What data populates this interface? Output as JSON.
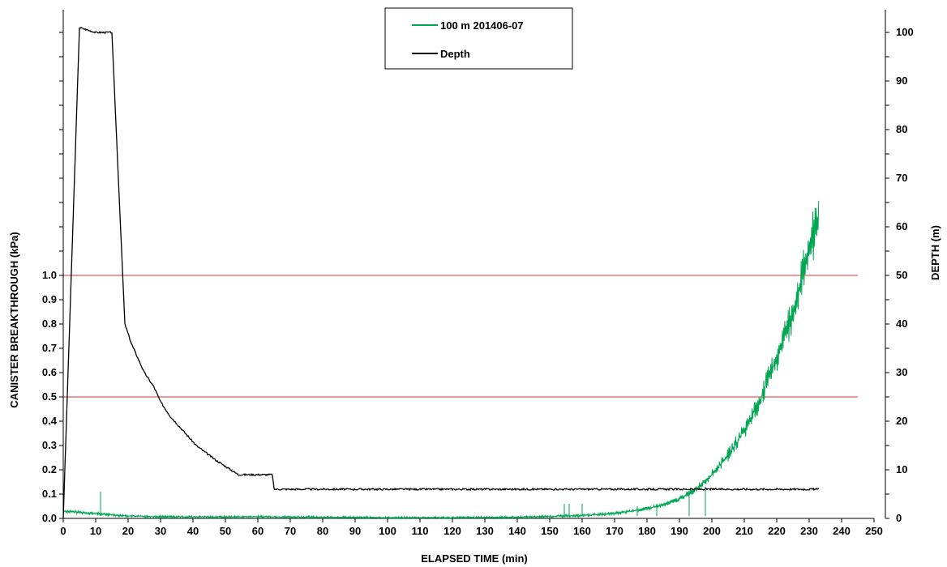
{
  "chart_data": {
    "type": "line",
    "xlabel": "ELAPSED TIME (min)",
    "ylabel_left": "CANISTER BREAKTHROUGH (kPa)",
    "ylabel_right": "DEPTH (m)",
    "xlim": [
      0,
      250
    ],
    "ylim_left": [
      0,
      1.7
    ],
    "ylim_right": [
      0,
      105
    ],
    "x_ticks": [
      "0",
      "10",
      "20",
      "30",
      "40",
      "50",
      "60",
      "70",
      "80",
      "90",
      "100",
      "110",
      "120",
      "130",
      "140",
      "150",
      "160",
      "170",
      "180",
      "190",
      "200",
      "210",
      "220",
      "230",
      "240",
      "250"
    ],
    "y_left_ticks": [
      "0.0",
      "0.1",
      "0.2",
      "0.3",
      "0.4",
      "0.5",
      "0.6",
      "0.7",
      "0.8",
      "0.9",
      "1.0"
    ],
    "y_right_ticks": [
      "0",
      "10",
      "20",
      "30",
      "40",
      "50",
      "60",
      "70",
      "80",
      "90",
      "100"
    ],
    "legend_position": "top-center",
    "reference_lines": [
      {
        "axis": "left",
        "value": 1.0,
        "color": "#e03030"
      },
      {
        "axis": "left",
        "value": 0.5,
        "color": "#e03030"
      }
    ],
    "series": [
      {
        "name": "100 m 201406-07",
        "axis": "left",
        "color": "#00a651",
        "points": [
          [
            0,
            0.03
          ],
          [
            5,
            0.025
          ],
          [
            10,
            0.02
          ],
          [
            15,
            0.015
          ],
          [
            20,
            0.01
          ],
          [
            30,
            0.007
          ],
          [
            40,
            0.006
          ],
          [
            50,
            0.006
          ],
          [
            60,
            0.007
          ],
          [
            70,
            0.006
          ],
          [
            80,
            0.005
          ],
          [
            90,
            0.004
          ],
          [
            100,
            0.003
          ],
          [
            110,
            0.003
          ],
          [
            120,
            0.003
          ],
          [
            130,
            0.004
          ],
          [
            140,
            0.005
          ],
          [
            150,
            0.008
          ],
          [
            160,
            0.012
          ],
          [
            170,
            0.02
          ],
          [
            180,
            0.04
          ],
          [
            185,
            0.055
          ],
          [
            190,
            0.08
          ],
          [
            195,
            0.12
          ],
          [
            200,
            0.18
          ],
          [
            205,
            0.26
          ],
          [
            210,
            0.36
          ],
          [
            215,
            0.49
          ],
          [
            220,
            0.66
          ],
          [
            225,
            0.85
          ],
          [
            230,
            1.1
          ],
          [
            233,
            1.25
          ]
        ]
      },
      {
        "name": "Depth",
        "axis": "right",
        "color": "#000000",
        "points": [
          [
            0,
            0
          ],
          [
            5,
            101
          ],
          [
            10,
            100
          ],
          [
            15,
            100
          ],
          [
            19,
            40
          ],
          [
            21,
            36
          ],
          [
            23,
            33
          ],
          [
            25,
            30
          ],
          [
            28,
            27
          ],
          [
            30,
            24
          ],
          [
            33,
            21
          ],
          [
            37,
            18
          ],
          [
            41,
            15
          ],
          [
            47,
            12
          ],
          [
            54,
            9
          ],
          [
            64.5,
            9
          ],
          [
            65,
            6
          ],
          [
            100,
            6
          ],
          [
            150,
            6
          ],
          [
            200,
            6
          ],
          [
            233,
            6
          ]
        ]
      }
    ]
  }
}
